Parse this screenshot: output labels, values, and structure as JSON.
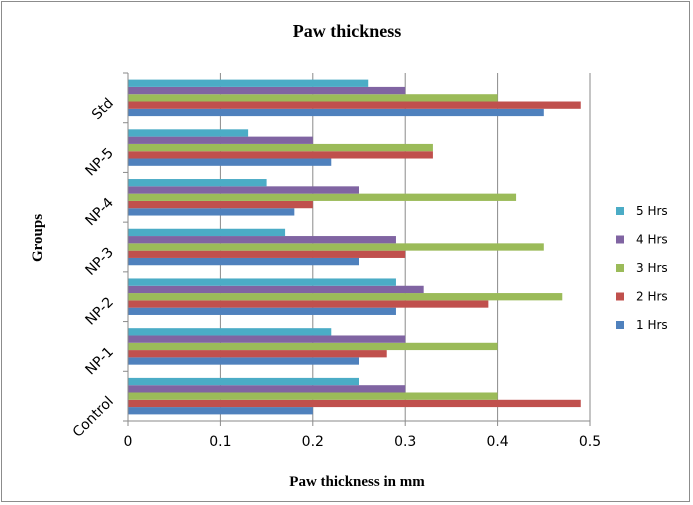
{
  "chart_data": {
    "type": "bar",
    "orientation": "horizontal",
    "title": "Paw thickness",
    "xlabel": "Paw thickness in mm",
    "ylabel": "Groups",
    "categories": [
      "Control",
      "NP-1",
      "NP-2",
      "NP-3",
      "NP-4",
      "NP-5",
      "Std"
    ],
    "xlim": [
      0,
      0.5
    ],
    "xticks": [
      "0",
      "0.1",
      "0.2",
      "0.3",
      "0.4",
      "0.5"
    ],
    "grid": "vertical",
    "legend_position": "right",
    "series": [
      {
        "name": "1 Hrs",
        "color": "#4f81bd",
        "values": [
          0.2,
          0.25,
          0.29,
          0.25,
          0.18,
          0.22,
          0.45
        ]
      },
      {
        "name": "2 Hrs",
        "color": "#c0504d",
        "values": [
          0.49,
          0.28,
          0.39,
          0.3,
          0.2,
          0.33,
          0.49
        ]
      },
      {
        "name": "3 Hrs",
        "color": "#9bbb59",
        "values": [
          0.4,
          0.4,
          0.47,
          0.45,
          0.42,
          0.33,
          0.4
        ]
      },
      {
        "name": "4 Hrs",
        "color": "#8064a2",
        "values": [
          0.3,
          0.3,
          0.32,
          0.29,
          0.25,
          0.2,
          0.3
        ]
      },
      {
        "name": "5 Hrs",
        "color": "#4bacc6",
        "values": [
          0.25,
          0.22,
          0.29,
          0.17,
          0.15,
          0.13,
          0.26
        ]
      }
    ]
  }
}
